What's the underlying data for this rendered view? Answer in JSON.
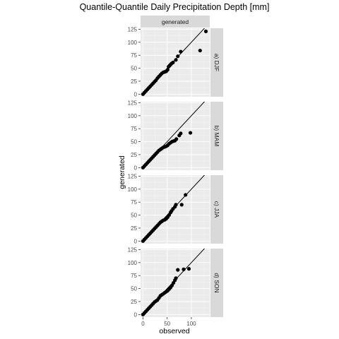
{
  "chart_data": {
    "type": "scatter",
    "title": "Quantile-Quantile Daily Precipitation Depth [mm]",
    "xlabel": "observed",
    "ylabel": "generated",
    "column_strip": "generated",
    "xlim": [
      -5,
      138
    ],
    "ylim": [
      -5,
      127
    ],
    "x_ticks": [
      0,
      50,
      100
    ],
    "y_ticks": [
      0,
      25,
      50,
      75,
      100,
      125
    ],
    "grid": true,
    "reference_line": "y = x",
    "panels": [
      {
        "label": "a) DJF",
        "points": [
          [
            0,
            0
          ],
          [
            3,
            3
          ],
          [
            6,
            6
          ],
          [
            9,
            9
          ],
          [
            12,
            12
          ],
          [
            15,
            15
          ],
          [
            18,
            18
          ],
          [
            21,
            21
          ],
          [
            24,
            24
          ],
          [
            27,
            27
          ],
          [
            30,
            31
          ],
          [
            33,
            34
          ],
          [
            36,
            37
          ],
          [
            39,
            40
          ],
          [
            42,
            42
          ],
          [
            45,
            43
          ],
          [
            48,
            44
          ],
          [
            51,
            47
          ],
          [
            53,
            53
          ],
          [
            55,
            55
          ],
          [
            57,
            57
          ],
          [
            59,
            59
          ],
          [
            62,
            61
          ],
          [
            68,
            66
          ],
          [
            72,
            73
          ],
          [
            78,
            82
          ],
          [
            118,
            84
          ],
          [
            130,
            121
          ]
        ]
      },
      {
        "label": "b) MAM",
        "points": [
          [
            0,
            0
          ],
          [
            3,
            3
          ],
          [
            6,
            6
          ],
          [
            9,
            9
          ],
          [
            12,
            12
          ],
          [
            15,
            15
          ],
          [
            18,
            18
          ],
          [
            21,
            21
          ],
          [
            24,
            24
          ],
          [
            27,
            27
          ],
          [
            30,
            30
          ],
          [
            33,
            33
          ],
          [
            36,
            35
          ],
          [
            39,
            37
          ],
          [
            42,
            39
          ],
          [
            45,
            40
          ],
          [
            48,
            41
          ],
          [
            51,
            43
          ],
          [
            54,
            46
          ],
          [
            57,
            48
          ],
          [
            60,
            50
          ],
          [
            63,
            51
          ],
          [
            66,
            52
          ],
          [
            69,
            55
          ],
          [
            75,
            62
          ],
          [
            78,
            66
          ],
          [
            98,
            67
          ]
        ]
      },
      {
        "label": "c) JJA",
        "points": [
          [
            0,
            0
          ],
          [
            3,
            3
          ],
          [
            6,
            6
          ],
          [
            9,
            9
          ],
          [
            12,
            12
          ],
          [
            15,
            15
          ],
          [
            18,
            18
          ],
          [
            21,
            21
          ],
          [
            24,
            24
          ],
          [
            27,
            27
          ],
          [
            30,
            30
          ],
          [
            33,
            33
          ],
          [
            36,
            36
          ],
          [
            39,
            38
          ],
          [
            42,
            40
          ],
          [
            45,
            41
          ],
          [
            48,
            43
          ],
          [
            51,
            46
          ],
          [
            54,
            50
          ],
          [
            57,
            55
          ],
          [
            59,
            58
          ],
          [
            62,
            62
          ],
          [
            66,
            66
          ],
          [
            68,
            70
          ],
          [
            80,
            70
          ],
          [
            88,
            89
          ]
        ]
      },
      {
        "label": "d) SON",
        "points": [
          [
            0,
            0
          ],
          [
            3,
            3
          ],
          [
            6,
            6
          ],
          [
            9,
            9
          ],
          [
            12,
            12
          ],
          [
            15,
            15
          ],
          [
            18,
            18
          ],
          [
            21,
            21
          ],
          [
            24,
            24
          ],
          [
            27,
            26
          ],
          [
            30,
            28
          ],
          [
            33,
            32
          ],
          [
            36,
            36
          ],
          [
            39,
            38
          ],
          [
            42,
            40
          ],
          [
            45,
            42
          ],
          [
            48,
            44
          ],
          [
            51,
            46
          ],
          [
            54,
            49
          ],
          [
            57,
            52
          ],
          [
            60,
            56
          ],
          [
            63,
            61
          ],
          [
            66,
            66
          ],
          [
            68,
            70
          ],
          [
            72,
            86
          ],
          [
            84,
            87
          ],
          [
            95,
            88
          ]
        ]
      }
    ]
  }
}
